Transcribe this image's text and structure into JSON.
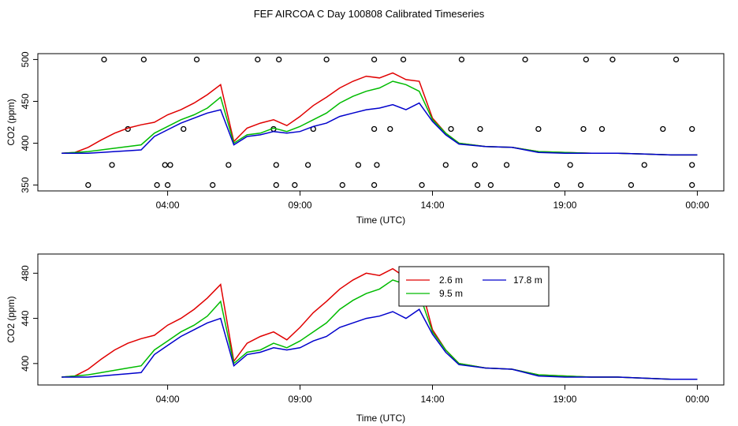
{
  "title": "FEF AIRCOA C  Day 100808  Calibrated Timeseries",
  "colors": {
    "s26": "#e00000",
    "s95": "#00bb00",
    "s178": "#0000cc",
    "qc": "#000000"
  },
  "chart_data": [
    {
      "type": "line",
      "xlabel": "Time (UTC)",
      "ylabel": "CO2 (ppm)",
      "xticks": [
        "04:00",
        "09:00",
        "14:00",
        "19:00",
        "00:00"
      ],
      "xtick_hours": [
        4,
        9,
        14,
        19,
        24
      ],
      "yticks": [
        350,
        400,
        450,
        500
      ],
      "xlim": [
        -0.9,
        25.0
      ],
      "ylim": [
        343,
        507
      ],
      "series": [
        {
          "name": "2.6 m",
          "color": "#e00000",
          "x": [
            0,
            0.5,
            1.0,
            1.5,
            2.0,
            2.5,
            3.0,
            3.5,
            4.0,
            4.5,
            5.0,
            5.5,
            6.0,
            6.5,
            7.0,
            7.5,
            8.0,
            8.5,
            9.0,
            9.5,
            10.0,
            10.5,
            11.0,
            11.5,
            12.0,
            12.5,
            13.0,
            13.5,
            14.0,
            14.5,
            15.0,
            16,
            17,
            18,
            19,
            20,
            21,
            22,
            23,
            24
          ],
          "y": [
            388,
            389,
            395,
            404,
            412,
            418,
            422,
            425,
            434,
            440,
            448,
            458,
            470,
            402,
            418,
            424,
            428,
            421,
            432,
            445,
            455,
            466,
            474,
            480,
            478,
            484,
            476,
            474,
            430,
            412,
            400,
            396,
            395,
            390,
            389,
            388,
            388,
            387,
            386,
            386
          ]
        },
        {
          "name": "9.5 m",
          "color": "#00bb00",
          "x": [
            0,
            0.5,
            1.0,
            1.5,
            2.0,
            2.5,
            3.0,
            3.5,
            4.0,
            4.5,
            5.0,
            5.5,
            6.0,
            6.5,
            7.0,
            7.5,
            8.0,
            8.5,
            9.0,
            9.5,
            10.0,
            10.5,
            11.0,
            11.5,
            12.0,
            12.5,
            13.0,
            13.5,
            14.0,
            14.5,
            15.0,
            16,
            17,
            18,
            19,
            20,
            21,
            22,
            23,
            24
          ],
          "y": [
            388,
            389,
            390,
            392,
            394,
            396,
            398,
            412,
            420,
            428,
            434,
            442,
            455,
            400,
            410,
            412,
            418,
            414,
            420,
            428,
            436,
            448,
            456,
            462,
            466,
            474,
            470,
            462,
            428,
            412,
            400,
            396,
            395,
            390,
            389,
            388,
            388,
            387,
            386,
            386
          ]
        },
        {
          "name": "17.8 m",
          "color": "#0000cc",
          "x": [
            0,
            0.5,
            1.0,
            1.5,
            2.0,
            2.5,
            3.0,
            3.5,
            4.0,
            4.5,
            5.0,
            5.5,
            6.0,
            6.5,
            7.0,
            7.5,
            8.0,
            8.5,
            9.0,
            9.5,
            10.0,
            10.5,
            11.0,
            11.5,
            12.0,
            12.5,
            13.0,
            13.5,
            14.0,
            14.5,
            15.0,
            16,
            17,
            18,
            19,
            20,
            21,
            22,
            23,
            24
          ],
          "y": [
            388,
            388,
            388,
            389,
            390,
            391,
            392,
            408,
            416,
            424,
            430,
            436,
            440,
            398,
            408,
            410,
            414,
            412,
            414,
            420,
            424,
            432,
            436,
            440,
            442,
            446,
            440,
            448,
            426,
            410,
            399,
            396,
            395,
            389,
            388,
            388,
            388,
            387,
            386,
            386
          ]
        }
      ],
      "qc_points": {
        "x": [
          1.0,
          1.6,
          1.9,
          2.5,
          3.1,
          3.6,
          3.9,
          4.0,
          4.1,
          4.6,
          5.1,
          5.7,
          6.3,
          7.4,
          8.0,
          8.1,
          8.1,
          8.2,
          8.8,
          9.3,
          9.5,
          10.0,
          10.6,
          11.2,
          11.8,
          11.8,
          11.8,
          11.9,
          12.4,
          12.9,
          13.6,
          14.5,
          14.7,
          15.1,
          15.6,
          15.7,
          15.8,
          16.2,
          16.8,
          17.5,
          18.0,
          18.7,
          19.2,
          19.6,
          19.7,
          19.8,
          20.4,
          20.8,
          21.5,
          22.0,
          22.7,
          23.2,
          23.8,
          23.8,
          23.8
        ],
        "y": [
          350,
          500,
          374,
          417,
          500,
          350,
          374,
          350,
          374,
          417,
          500,
          350,
          374,
          500,
          417,
          374,
          350,
          500,
          350,
          374,
          417,
          500,
          350,
          374,
          417,
          500,
          350,
          374,
          417,
          500,
          350,
          374,
          417,
          500,
          374,
          350,
          417,
          350,
          374,
          500,
          417,
          350,
          374,
          350,
          417,
          500,
          417,
          500,
          350,
          374,
          417,
          500,
          350,
          374,
          417
        ]
      }
    },
    {
      "type": "line",
      "xlabel": "Time (UTC)",
      "ylabel": "CO2 (ppm)",
      "xticks": [
        "04:00",
        "09:00",
        "14:00",
        "19:00",
        "00:00"
      ],
      "xtick_hours": [
        4,
        9,
        14,
        19,
        24
      ],
      "yticks": [
        400,
        440,
        480
      ],
      "xlim": [
        -0.9,
        25.0
      ],
      "ylim": [
        381,
        497
      ],
      "legend": {
        "position": "top-center",
        "entries": [
          "2.6 m",
          "9.5 m",
          "17.8 m"
        ]
      },
      "series": [
        {
          "name": "2.6 m",
          "color": "#e00000",
          "x": [
            0,
            0.5,
            1.0,
            1.5,
            2.0,
            2.5,
            3.0,
            3.5,
            4.0,
            4.5,
            5.0,
            5.5,
            6.0,
            6.5,
            7.0,
            7.5,
            8.0,
            8.5,
            9.0,
            9.5,
            10.0,
            10.5,
            11.0,
            11.5,
            12.0,
            12.5,
            13.0,
            13.5,
            14.0,
            14.5,
            15.0,
            16,
            17,
            18,
            19,
            20,
            21,
            22,
            23,
            24
          ],
          "y": [
            388,
            389,
            395,
            404,
            412,
            418,
            422,
            425,
            434,
            440,
            448,
            458,
            470,
            402,
            418,
            424,
            428,
            421,
            432,
            445,
            455,
            466,
            474,
            480,
            478,
            484,
            476,
            474,
            430,
            412,
            400,
            396,
            395,
            390,
            389,
            388,
            388,
            387,
            386,
            386
          ]
        },
        {
          "name": "9.5 m",
          "color": "#00bb00",
          "x": [
            0,
            0.5,
            1.0,
            1.5,
            2.0,
            2.5,
            3.0,
            3.5,
            4.0,
            4.5,
            5.0,
            5.5,
            6.0,
            6.5,
            7.0,
            7.5,
            8.0,
            8.5,
            9.0,
            9.5,
            10.0,
            10.5,
            11.0,
            11.5,
            12.0,
            12.5,
            13.0,
            13.5,
            14.0,
            14.5,
            15.0,
            16,
            17,
            18,
            19,
            20,
            21,
            22,
            23,
            24
          ],
          "y": [
            388,
            389,
            390,
            392,
            394,
            396,
            398,
            412,
            420,
            428,
            434,
            442,
            455,
            400,
            410,
            412,
            418,
            414,
            420,
            428,
            436,
            448,
            456,
            462,
            466,
            474,
            470,
            462,
            428,
            412,
            400,
            396,
            395,
            390,
            389,
            388,
            388,
            387,
            386,
            386
          ]
        },
        {
          "name": "17.8 m",
          "color": "#0000cc",
          "x": [
            0,
            0.5,
            1.0,
            1.5,
            2.0,
            2.5,
            3.0,
            3.5,
            4.0,
            4.5,
            5.0,
            5.5,
            6.0,
            6.5,
            7.0,
            7.5,
            8.0,
            8.5,
            9.0,
            9.5,
            10.0,
            10.5,
            11.0,
            11.5,
            12.0,
            12.5,
            13.0,
            13.5,
            14.0,
            14.5,
            15.0,
            16,
            17,
            18,
            19,
            20,
            21,
            22,
            23,
            24
          ],
          "y": [
            388,
            388,
            388,
            389,
            390,
            391,
            392,
            408,
            416,
            424,
            430,
            436,
            440,
            398,
            408,
            410,
            414,
            412,
            414,
            420,
            424,
            432,
            436,
            440,
            442,
            446,
            440,
            448,
            426,
            410,
            399,
            396,
            395,
            389,
            388,
            388,
            388,
            387,
            386,
            386
          ]
        }
      ]
    }
  ]
}
